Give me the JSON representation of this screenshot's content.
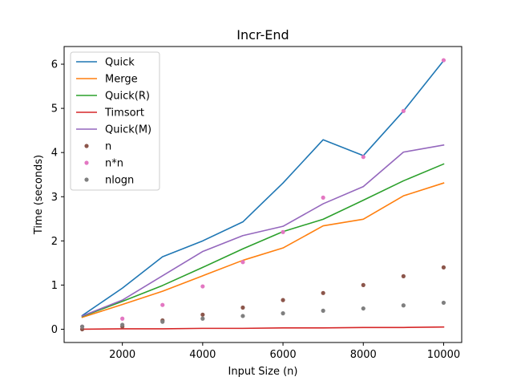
{
  "chart_data": {
    "type": "line",
    "title": "Incr-End",
    "xlabel": "Input Size (n)",
    "ylabel": "Time (seconds)",
    "xlim": [
      550,
      10450
    ],
    "ylim": [
      -0.3,
      6.4
    ],
    "x": [
      1000,
      2000,
      3000,
      4000,
      5000,
      6000,
      7000,
      8000,
      9000,
      10000
    ],
    "xticks": [
      2000,
      4000,
      6000,
      8000,
      10000
    ],
    "xtick_labels": [
      "2000",
      "4000",
      "6000",
      "8000",
      "10000"
    ],
    "yticks": [
      0,
      1,
      2,
      3,
      4,
      5,
      6
    ],
    "ytick_labels": [
      "0",
      "1",
      "2",
      "3",
      "4",
      "5",
      "6"
    ],
    "legend_position": "top-left",
    "series": [
      {
        "name": "Quick",
        "kind": "line",
        "color": "#1f77b4",
        "values": [
          0.31,
          0.93,
          1.64,
          2.0,
          2.43,
          3.31,
          4.29,
          3.93,
          4.94,
          6.08
        ]
      },
      {
        "name": "Merge",
        "kind": "line",
        "color": "#ff7f0e",
        "values": [
          0.27,
          0.56,
          0.86,
          1.21,
          1.56,
          1.84,
          2.34,
          2.49,
          3.02,
          3.31
        ]
      },
      {
        "name": "Quick(R)",
        "kind": "line",
        "color": "#2ca02c",
        "values": [
          0.29,
          0.63,
          0.99,
          1.4,
          1.82,
          2.21,
          2.49,
          2.92,
          3.36,
          3.74
        ]
      },
      {
        "name": "Timsort",
        "kind": "line",
        "color": "#d62728",
        "values": [
          0.0,
          0.01,
          0.01,
          0.02,
          0.02,
          0.03,
          0.03,
          0.04,
          0.04,
          0.05
        ]
      },
      {
        "name": "Quick(M)",
        "kind": "line",
        "color": "#9467bd",
        "values": [
          0.3,
          0.66,
          1.21,
          1.76,
          2.12,
          2.33,
          2.84,
          3.23,
          4.01,
          4.17
        ]
      },
      {
        "name": "n",
        "kind": "scatter",
        "color": "#8c564b",
        "values": [
          0.0,
          0.06,
          0.2,
          0.33,
          0.49,
          0.66,
          0.82,
          1.0,
          1.2,
          1.4
        ]
      },
      {
        "name": "n*n",
        "kind": "scatter",
        "color": "#e377c2",
        "values": [
          0.06,
          0.24,
          0.55,
          0.97,
          1.52,
          2.2,
          2.98,
          3.9,
          4.94,
          6.09
        ]
      },
      {
        "name": "nlogn",
        "kind": "scatter",
        "color": "#7f7f7f",
        "values": [
          0.06,
          0.1,
          0.17,
          0.24,
          0.3,
          0.36,
          0.42,
          0.47,
          0.54,
          0.6
        ]
      }
    ]
  }
}
